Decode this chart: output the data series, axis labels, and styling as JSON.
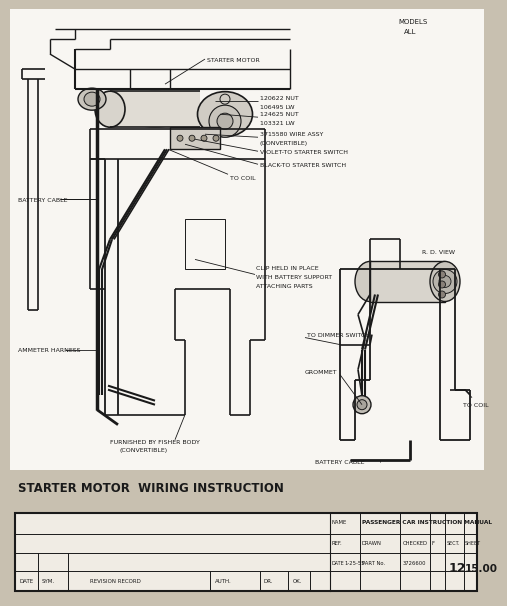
{
  "bg_color": "#ffffff",
  "outer_bg": "#c8c0b0",
  "line_color": "#1a1a1a",
  "text_color": "#1a1a1a",
  "title": "STARTER MOTOR  WIRING INSTRUCTION",
  "models_text1": "MODELS",
  "models_text2": "ALL",
  "table_name": "PASSENGER CAR INSTRUCTION MANUAL",
  "table_ref": "REF.",
  "table_drawn": "DRAWN",
  "table_checked": "CHECKED",
  "table_checked_val": "F",
  "table_sect": "SECT.",
  "table_sect_val": "12",
  "table_sheet": "SHEET",
  "table_sheet_val": "15.00",
  "table_date_val": "1-25-55",
  "table_part": "PART No.",
  "table_part_val": "3726600",
  "table_auth": "AUTH.",
  "table_dr": "DR.",
  "table_ok": "OK.",
  "table_date": "DATE",
  "table_sym": "SYM.",
  "table_rev": "REVISION RECORD",
  "table_name_lbl": "NAME",
  "ann_fs": 4.5
}
